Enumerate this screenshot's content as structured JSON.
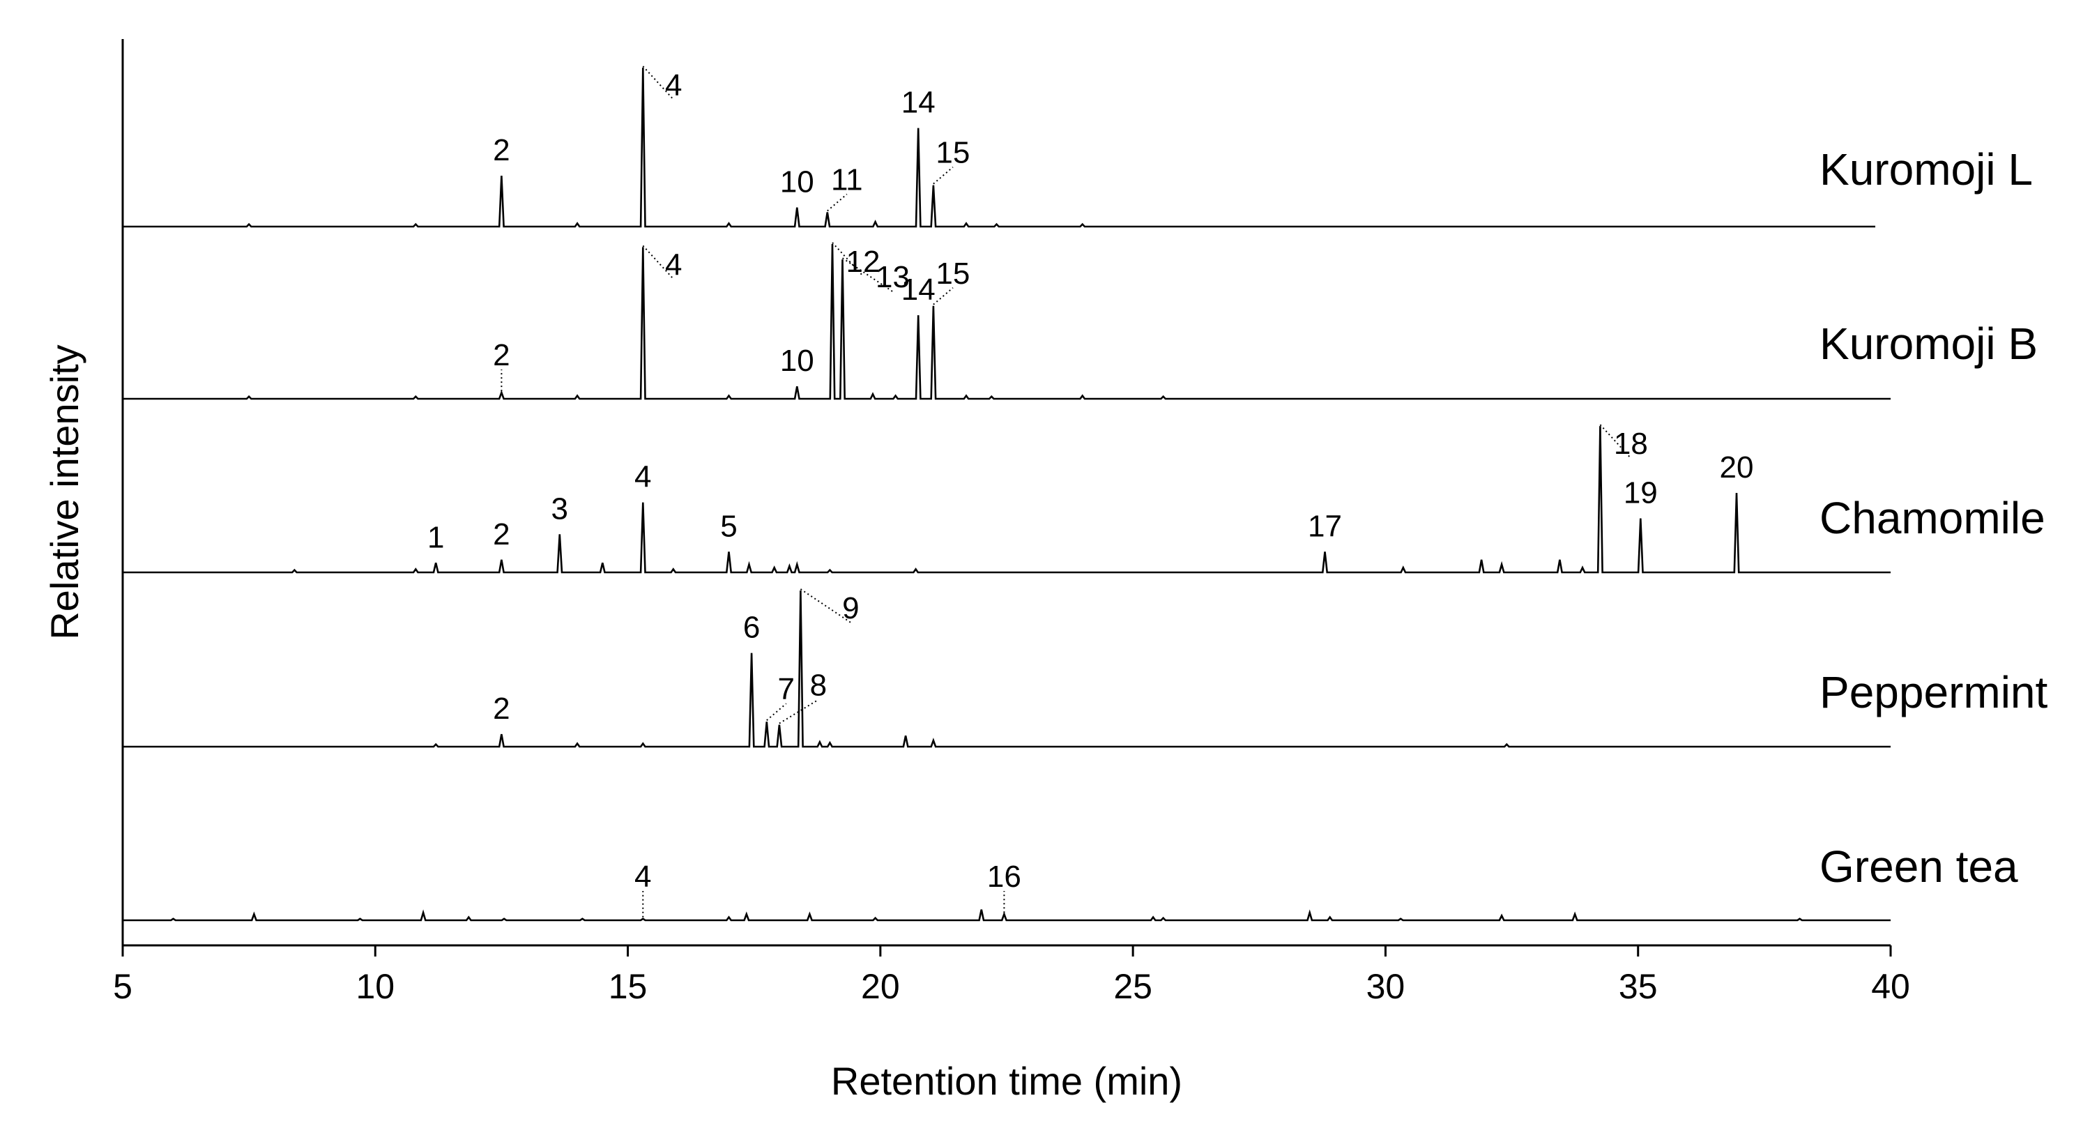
{
  "chart_data": {
    "type": "line",
    "xlabel": "Retention time (min)",
    "ylabel": "Relative intensity",
    "xlim": [
      5,
      40
    ],
    "xticks": [
      5,
      10,
      15,
      20,
      25,
      30,
      35,
      40
    ],
    "ylim": [
      0,
      1
    ],
    "grid": false,
    "legend": "none",
    "series": [
      {
        "name": "Kuromoji L",
        "peaks": [
          {
            "x": 12.5,
            "h": 0.32
          },
          {
            "x": 15.3,
            "h": 1.0
          },
          {
            "x": 18.35,
            "h": 0.12
          },
          {
            "x": 18.95,
            "h": 0.09
          },
          {
            "x": 20.75,
            "h": 0.62
          },
          {
            "x": 21.05,
            "h": 0.26
          },
          {
            "x": 7.5,
            "h": 0.015
          },
          {
            "x": 10.8,
            "h": 0.015
          },
          {
            "x": 14.0,
            "h": 0.02
          },
          {
            "x": 17.0,
            "h": 0.02
          },
          {
            "x": 19.9,
            "h": 0.03
          },
          {
            "x": 21.7,
            "h": 0.02
          },
          {
            "x": 22.3,
            "h": 0.015
          },
          {
            "x": 24.0,
            "h": 0.015
          }
        ],
        "labels": [
          {
            "text": "2",
            "x": 12.5
          },
          {
            "text": "4",
            "x": 15.3
          },
          {
            "text": "10",
            "x": 18.35
          },
          {
            "text": "11",
            "x": 18.95
          },
          {
            "text": "14",
            "x": 20.75
          },
          {
            "text": "15",
            "x": 21.05
          }
        ]
      },
      {
        "name": "Kuromoji B",
        "peaks": [
          {
            "x": 12.5,
            "h": 0.04
          },
          {
            "x": 15.3,
            "h": 0.98
          },
          {
            "x": 18.35,
            "h": 0.08
          },
          {
            "x": 19.05,
            "h": 1.0
          },
          {
            "x": 19.25,
            "h": 0.9
          },
          {
            "x": 20.75,
            "h": 0.54
          },
          {
            "x": 21.05,
            "h": 0.6
          },
          {
            "x": 7.5,
            "h": 0.015
          },
          {
            "x": 10.8,
            "h": 0.015
          },
          {
            "x": 14.0,
            "h": 0.02
          },
          {
            "x": 17.0,
            "h": 0.02
          },
          {
            "x": 19.85,
            "h": 0.03
          },
          {
            "x": 20.3,
            "h": 0.02
          },
          {
            "x": 21.7,
            "h": 0.02
          },
          {
            "x": 22.2,
            "h": 0.015
          },
          {
            "x": 24.0,
            "h": 0.02
          },
          {
            "x": 25.6,
            "h": 0.015
          }
        ],
        "labels": [
          {
            "text": "2",
            "x": 12.5
          },
          {
            "text": "4",
            "x": 15.3
          },
          {
            "text": "10",
            "x": 18.35
          },
          {
            "text": "12",
            "x": 19.05
          },
          {
            "text": "13",
            "x": 19.25
          },
          {
            "text": "14",
            "x": 20.75
          },
          {
            "text": "15",
            "x": 21.05
          }
        ]
      },
      {
        "name": "Chamomile",
        "peaks": [
          {
            "x": 11.2,
            "h": 0.06
          },
          {
            "x": 12.5,
            "h": 0.08
          },
          {
            "x": 13.65,
            "h": 0.24
          },
          {
            "x": 15.3,
            "h": 0.44
          },
          {
            "x": 17.0,
            "h": 0.13
          },
          {
            "x": 28.8,
            "h": 0.13
          },
          {
            "x": 34.25,
            "h": 0.92
          },
          {
            "x": 35.05,
            "h": 0.34
          },
          {
            "x": 36.95,
            "h": 0.5
          },
          {
            "x": 8.4,
            "h": 0.015
          },
          {
            "x": 10.8,
            "h": 0.02
          },
          {
            "x": 14.5,
            "h": 0.06
          },
          {
            "x": 15.9,
            "h": 0.02
          },
          {
            "x": 17.4,
            "h": 0.05
          },
          {
            "x": 17.9,
            "h": 0.03
          },
          {
            "x": 18.2,
            "h": 0.04
          },
          {
            "x": 18.35,
            "h": 0.05
          },
          {
            "x": 19.0,
            "h": 0.015
          },
          {
            "x": 20.7,
            "h": 0.02
          },
          {
            "x": 30.35,
            "h": 0.03
          },
          {
            "x": 31.9,
            "h": 0.08
          },
          {
            "x": 32.3,
            "h": 0.05
          },
          {
            "x": 33.45,
            "h": 0.08
          },
          {
            "x": 33.9,
            "h": 0.03
          }
        ],
        "labels": [
          {
            "text": "1",
            "x": 11.2
          },
          {
            "text": "2",
            "x": 12.5
          },
          {
            "text": "3",
            "x": 13.65
          },
          {
            "text": "4",
            "x": 15.3
          },
          {
            "text": "5",
            "x": 17.0
          },
          {
            "text": "17",
            "x": 28.8
          },
          {
            "text": "18",
            "x": 34.25
          },
          {
            "text": "19",
            "x": 35.05
          },
          {
            "text": "20",
            "x": 36.95
          }
        ]
      },
      {
        "name": "Peppermint",
        "peaks": [
          {
            "x": 12.5,
            "h": 0.08
          },
          {
            "x": 17.45,
            "h": 0.6
          },
          {
            "x": 17.75,
            "h": 0.16
          },
          {
            "x": 18.0,
            "h": 0.14
          },
          {
            "x": 18.42,
            "h": 1.0
          },
          {
            "x": 11.2,
            "h": 0.015
          },
          {
            "x": 14.0,
            "h": 0.02
          },
          {
            "x": 15.3,
            "h": 0.02
          },
          {
            "x": 18.8,
            "h": 0.03
          },
          {
            "x": 19.0,
            "h": 0.025
          },
          {
            "x": 20.5,
            "h": 0.07
          },
          {
            "x": 21.05,
            "h": 0.04
          },
          {
            "x": 32.4,
            "h": 0.015
          }
        ],
        "labels": [
          {
            "text": "2",
            "x": 12.5
          },
          {
            "text": "6",
            "x": 17.45
          },
          {
            "text": "7",
            "x": 17.75
          },
          {
            "text": "8",
            "x": 18.0
          },
          {
            "text": "9",
            "x": 18.42
          }
        ]
      },
      {
        "name": "Green tea",
        "peaks": [
          {
            "x": 15.3,
            "h": 0.01
          },
          {
            "x": 22.0,
            "h": 0.07
          },
          {
            "x": 22.45,
            "h": 0.04
          },
          {
            "x": 6.0,
            "h": 0.01
          },
          {
            "x": 7.6,
            "h": 0.04
          },
          {
            "x": 9.7,
            "h": 0.01
          },
          {
            "x": 10.95,
            "h": 0.05
          },
          {
            "x": 11.85,
            "h": 0.02
          },
          {
            "x": 12.55,
            "h": 0.01
          },
          {
            "x": 14.1,
            "h": 0.01
          },
          {
            "x": 17.0,
            "h": 0.02
          },
          {
            "x": 17.35,
            "h": 0.04
          },
          {
            "x": 18.6,
            "h": 0.04
          },
          {
            "x": 19.9,
            "h": 0.015
          },
          {
            "x": 25.4,
            "h": 0.02
          },
          {
            "x": 25.6,
            "h": 0.015
          },
          {
            "x": 28.5,
            "h": 0.05
          },
          {
            "x": 28.9,
            "h": 0.02
          },
          {
            "x": 30.3,
            "h": 0.01
          },
          {
            "x": 32.3,
            "h": 0.03
          },
          {
            "x": 33.75,
            "h": 0.04
          },
          {
            "x": 38.2,
            "h": 0.01
          }
        ],
        "labels": [
          {
            "text": "4",
            "x": 15.3
          },
          {
            "text": "16",
            "x": 22.45
          }
        ]
      }
    ]
  }
}
